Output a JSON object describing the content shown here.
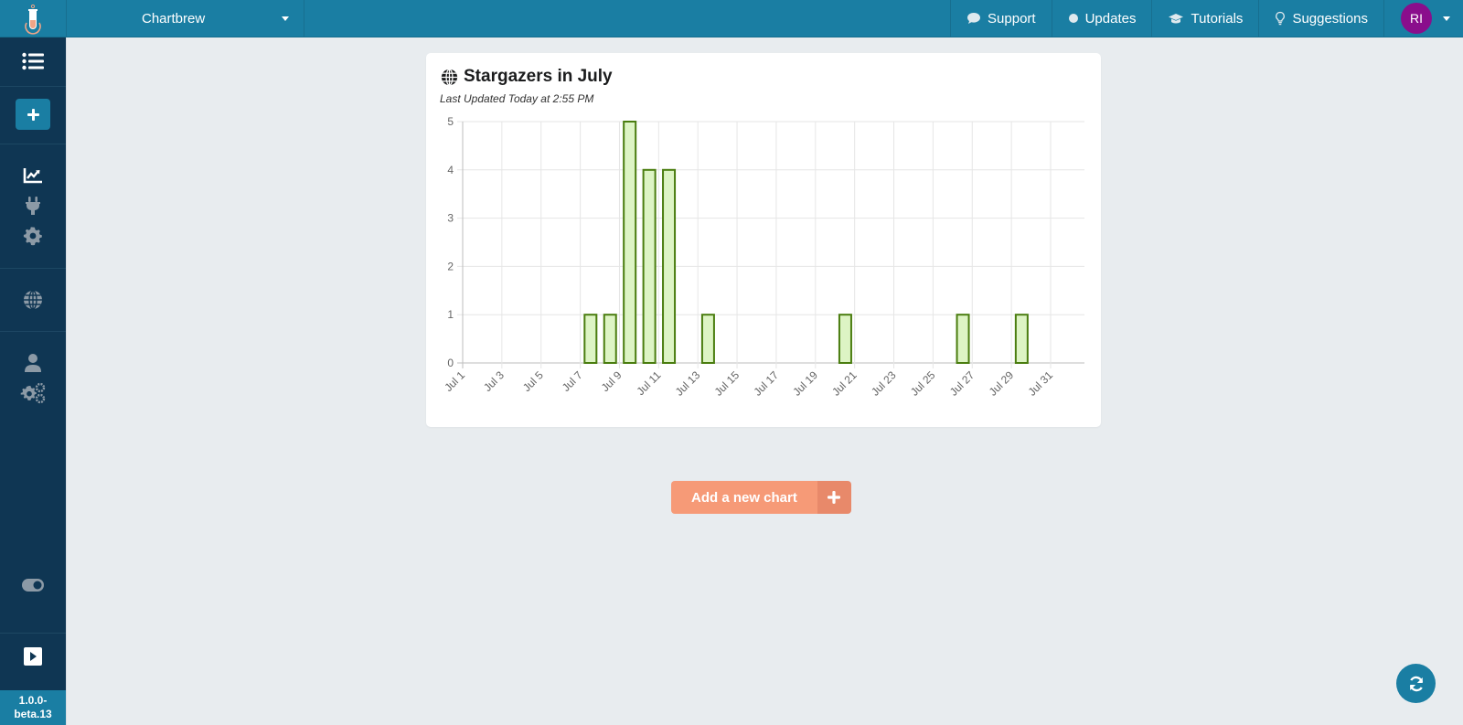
{
  "topbar": {
    "project_name": "Chartbrew",
    "nav": [
      {
        "label": "Support",
        "icon": "comment-icon"
      },
      {
        "label": "Updates",
        "icon": "circle-icon"
      },
      {
        "label": "Tutorials",
        "icon": "graduation-cap-icon"
      },
      {
        "label": "Suggestions",
        "icon": "lightbulb-icon"
      }
    ],
    "user_initials": "RI"
  },
  "sidebar": {
    "items": [
      {
        "name": "dashboard-list",
        "icon": "list-icon"
      },
      {
        "name": "add-project",
        "icon": "plus-icon"
      },
      {
        "name": "dashboard",
        "icon": "chart-line-icon"
      },
      {
        "name": "connections",
        "icon": "plug-icon"
      },
      {
        "name": "project-settings",
        "icon": "gear-icon"
      },
      {
        "name": "public-dashboard",
        "icon": "globe-icon"
      },
      {
        "name": "team-members",
        "icon": "user-icon"
      },
      {
        "name": "team-settings",
        "icon": "gears-icon"
      },
      {
        "name": "theme-toggle",
        "icon": "toggle-icon"
      },
      {
        "name": "collapse-sidebar",
        "icon": "play-square-icon"
      }
    ],
    "version": "1.0.0-beta.13",
    "version_line1": "1.0.0-",
    "version_line2": "beta.13"
  },
  "chart_card": {
    "title": "Stargazers in July",
    "subtitle": "Last Updated Today at 2:55 PM",
    "icon": "globe-icon"
  },
  "add_chart_button": {
    "label": "Add a new chart",
    "icon": "plus-icon"
  },
  "refresh_button": {
    "icon": "sync-icon"
  },
  "colors": {
    "primary": "#1a7ea3",
    "sidebar": "#0f3653",
    "accent": "#f69a77",
    "bar_fill": "#ddf4c4",
    "bar_border": "#4a7d0f",
    "avatar": "#8a0e8c"
  },
  "chart_data": {
    "type": "bar",
    "title": "Stargazers in July",
    "subtitle": "Last Updated Today at 2:55 PM",
    "xlabel": "",
    "ylabel": "",
    "ylim": [
      0,
      5
    ],
    "yticks": [
      0,
      1,
      2,
      3,
      4,
      5
    ],
    "xticks": [
      "Jul 1",
      "Jul 3",
      "Jul 5",
      "Jul 7",
      "Jul 9",
      "Jul 11",
      "Jul 13",
      "Jul 15",
      "Jul 17",
      "Jul 19",
      "Jul 21",
      "Jul 23",
      "Jul 25",
      "Jul 27",
      "Jul 29",
      "Jul 31"
    ],
    "grid": true,
    "legend": "none",
    "categories": [
      "Jul 7",
      "Jul 8",
      "Jul 9",
      "Jul 10",
      "Jul 11",
      "Jul 13",
      "Jul 20",
      "Jul 26",
      "Jul 29"
    ],
    "days": [
      7,
      8,
      9,
      10,
      11,
      13,
      20,
      26,
      29
    ],
    "values": [
      1,
      1,
      5,
      4,
      4,
      1,
      1,
      1,
      1
    ]
  }
}
